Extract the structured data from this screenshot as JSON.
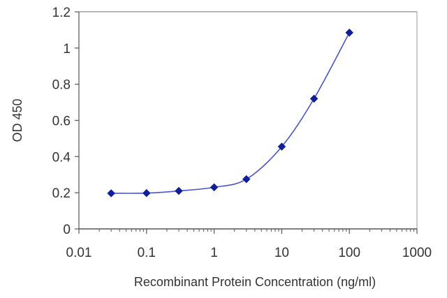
{
  "chart_data": {
    "type": "scatter",
    "title": "",
    "xlabel": "Recombinant Protein Concentration (ng/ml)",
    "ylabel": "OD 450",
    "x_scale": "log",
    "xlim": [
      0.01,
      1000
    ],
    "ylim": [
      0,
      1.2
    ],
    "x_ticks": [
      0.01,
      0.1,
      1,
      10,
      100,
      1000
    ],
    "x_tick_labels": [
      "0.01",
      "0.1",
      "1",
      "10",
      "100",
      "1000"
    ],
    "y_ticks": [
      0,
      0.2,
      0.4,
      0.6,
      0.8,
      1,
      1.2
    ],
    "y_tick_labels": [
      "0",
      "0.2",
      "0.4",
      "0.6",
      "0.8",
      "1",
      "1.2"
    ],
    "grid": "horizontal",
    "legend": "none",
    "series": [
      {
        "x": [
          0.03,
          0.1,
          0.3,
          1,
          3,
          10,
          30,
          100
        ],
        "y": [
          0.197,
          0.198,
          0.21,
          0.23,
          0.275,
          0.455,
          0.72,
          1.085
        ],
        "marker": "diamond",
        "fitted_curve": true,
        "color": "#0f1f9a"
      }
    ],
    "colors": {
      "series": "#0f1f9a",
      "curve": "#4755c6",
      "grid": "#666666",
      "axis": "#555555",
      "plot_background": "#ffffff"
    }
  }
}
